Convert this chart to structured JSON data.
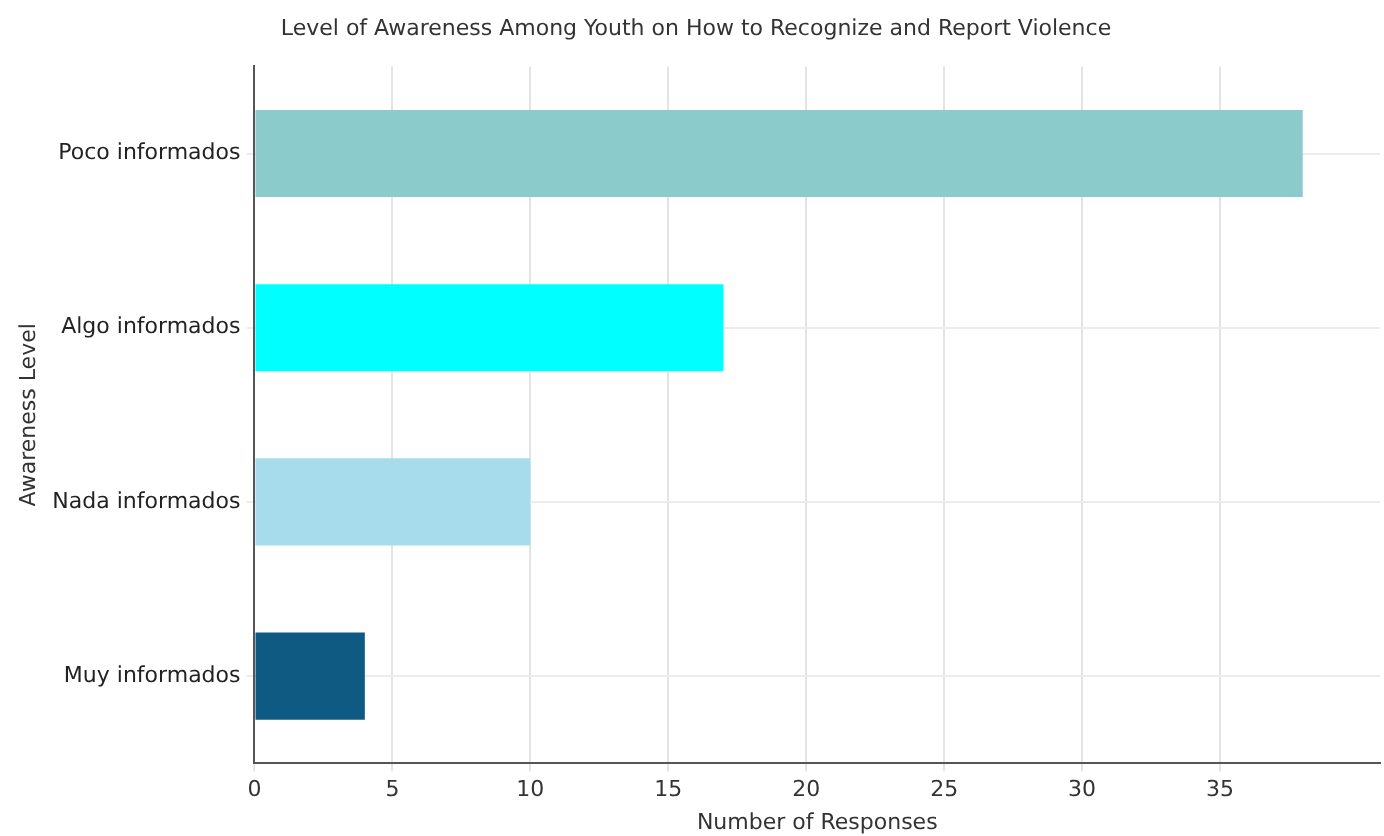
{
  "chart_data": {
    "type": "bar",
    "orientation": "horizontal",
    "title": "Level of Awareness Among Youth on How to Recognize and Report Violence",
    "xlabel": "Number of Responses",
    "ylabel": "Awareness Level",
    "categories": [
      "Poco informados",
      "Algo informados",
      "Nada informados",
      "Muy informados"
    ],
    "values": [
      38,
      17,
      10,
      4
    ],
    "colors": [
      "#8ccbcb",
      "#00ffff",
      "#a6dcec",
      "#0f5a82"
    ],
    "xlim": [
      0,
      40.8
    ],
    "xticks": [
      0,
      5,
      10,
      15,
      20,
      25,
      30,
      35
    ],
    "grid": true,
    "legend": false
  }
}
